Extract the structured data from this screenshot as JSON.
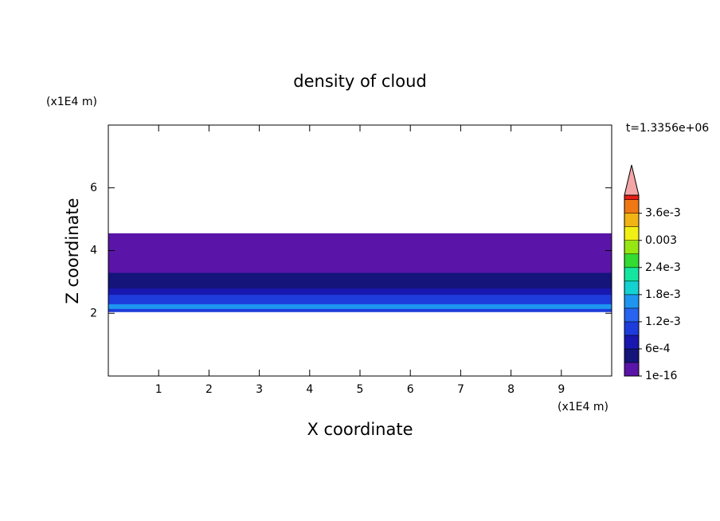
{
  "chart_data": {
    "type": "contour",
    "title": "density of cloud",
    "xlabel": "X coordinate",
    "ylabel": "Z coordinate",
    "x_unit": "(x1E4 m)",
    "y_unit": "(x1E4 m)",
    "annotation": "t=1.3356e+06",
    "xlim": [
      0,
      10
    ],
    "ylim": [
      0,
      8
    ],
    "xticks": [
      1,
      2,
      3,
      4,
      5,
      6,
      7,
      8,
      9
    ],
    "yticks": [
      2,
      4,
      6
    ],
    "z": [
      2.05,
      2.15,
      2.3,
      2.45,
      2.6,
      2.8,
      3.0,
      3.3,
      3.6,
      4.0,
      4.55
    ],
    "density": [
      0.001,
      0.0016,
      0.0011,
      0.0009,
      0.0007,
      0.0005,
      0.0004,
      0.0002,
      0.0001,
      5e-05
    ],
    "levels": [
      1e-16,
      0.0003,
      0.0006,
      0.0009,
      0.0012,
      0.0015,
      0.0018,
      0.0021,
      0.0024,
      0.0027,
      0.003,
      0.0033,
      0.0036,
      0.0039
    ],
    "colors": [
      "#5a14a8",
      "#14147a",
      "#1818b0",
      "#1e3cdc",
      "#2864f0",
      "#1e96f0",
      "#14d2d2",
      "#14e6a0",
      "#32dc32",
      "#96e614",
      "#f0f014",
      "#f0b414",
      "#f07814",
      "#e61e14"
    ],
    "extend_color": "#f4a6a6",
    "clim": [
      1e-16,
      0.004
    ],
    "colorbar_ticks": [
      {
        "value": 1e-16,
        "label": "1e-16"
      },
      {
        "value": 0.0006,
        "label": "6e-4"
      },
      {
        "value": 0.0012,
        "label": "1.2e-3"
      },
      {
        "value": 0.0018,
        "label": "1.8e-3"
      },
      {
        "value": 0.0024,
        "label": "2.4e-3"
      },
      {
        "value": 0.003,
        "label": "0.003"
      },
      {
        "value": 0.0036,
        "label": "3.6e-3"
      }
    ]
  }
}
